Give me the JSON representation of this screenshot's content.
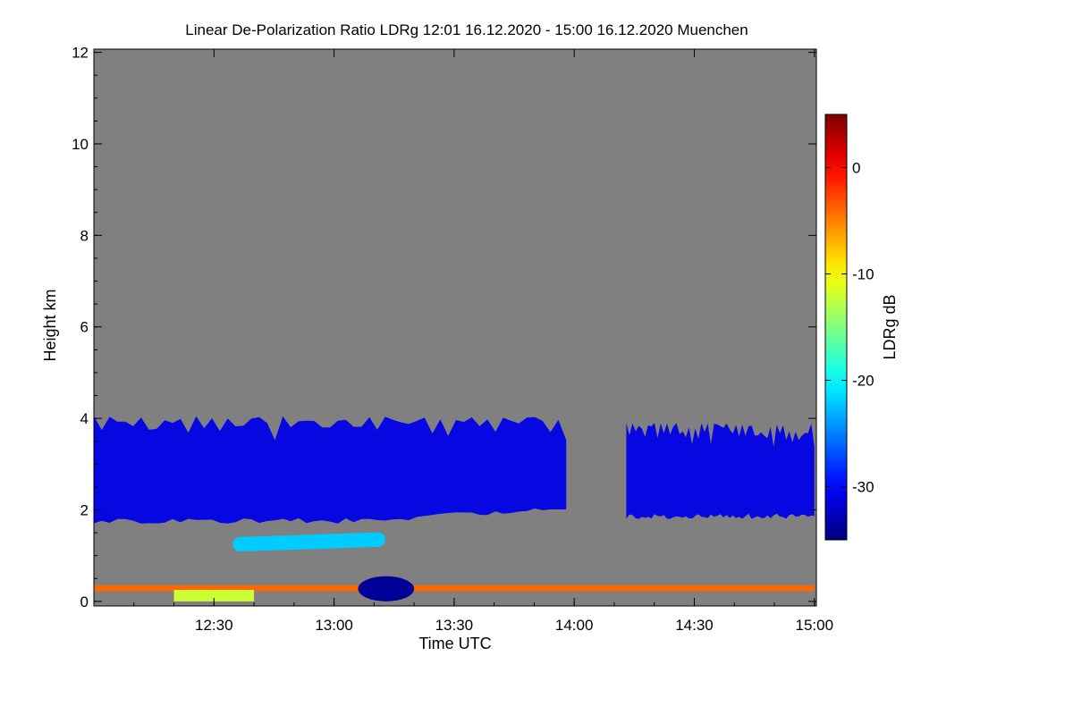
{
  "chart_data": {
    "type": "heatmap",
    "title": "Linear De-Polarization Ratio LDRg   12:01 16.12.2020 - 15:00 16.12.2020 Muenchen",
    "xlabel": "Time UTC",
    "ylabel": "Height km",
    "xlim": [
      "12:01",
      "15:01"
    ],
    "ylim": [
      0,
      12
    ],
    "x_ticks": [
      {
        "label": "12:30",
        "value": 30
      },
      {
        "label": "13:00",
        "value": 60
      },
      {
        "label": "13:30",
        "value": 90
      },
      {
        "label": "14:00",
        "value": 120
      },
      {
        "label": "14:30",
        "value": 150
      },
      {
        "label": "15:00",
        "value": 180
      }
    ],
    "y_ticks": [
      {
        "label": "0",
        "value": 0
      },
      {
        "label": "2",
        "value": 2
      },
      {
        "label": "4",
        "value": 4
      },
      {
        "label": "6",
        "value": 6
      },
      {
        "label": "8",
        "value": 8
      },
      {
        "label": "10",
        "value": 10
      },
      {
        "label": "12",
        "value": 12
      }
    ],
    "colorbar": {
      "label": "LDRg dB",
      "range": [
        -35,
        5
      ],
      "ticks": [
        {
          "label": "0",
          "value": 0
        },
        {
          "label": "-10",
          "value": -10
        },
        {
          "label": "-20",
          "value": -20
        },
        {
          "label": "-30",
          "value": -30
        }
      ],
      "colormap": "jet"
    },
    "no_data_color": "#808080",
    "features": [
      {
        "name": "cloud layer 1",
        "t_start": 0,
        "t_end": 118,
        "h_bottom": 1.7,
        "h_top": 4.05,
        "ldr_db": -31
      },
      {
        "name": "cloud layer 2",
        "t_start": 133,
        "t_end": 180,
        "h_bottom": 1.8,
        "h_top": 3.9,
        "ldr_db": -31
      },
      {
        "name": "melting band",
        "t_start": 32,
        "t_end": 71,
        "h_bottom": 1.1,
        "h_top": 1.45,
        "ldr_db": -22
      },
      {
        "name": "near-surface layer",
        "t_start": 0,
        "t_end": 180,
        "h_bottom": 0.22,
        "h_top": 0.35,
        "ldr_db": -4
      },
      {
        "name": "surface echoes",
        "t_start": 20,
        "t_end": 40,
        "h_bottom": 0.0,
        "h_top": 0.25,
        "ldr_db": -12
      },
      {
        "name": "low blob",
        "t_start": 66,
        "t_end": 80,
        "h_bottom": 0.0,
        "h_top": 0.55,
        "ldr_db": -34
      }
    ]
  }
}
